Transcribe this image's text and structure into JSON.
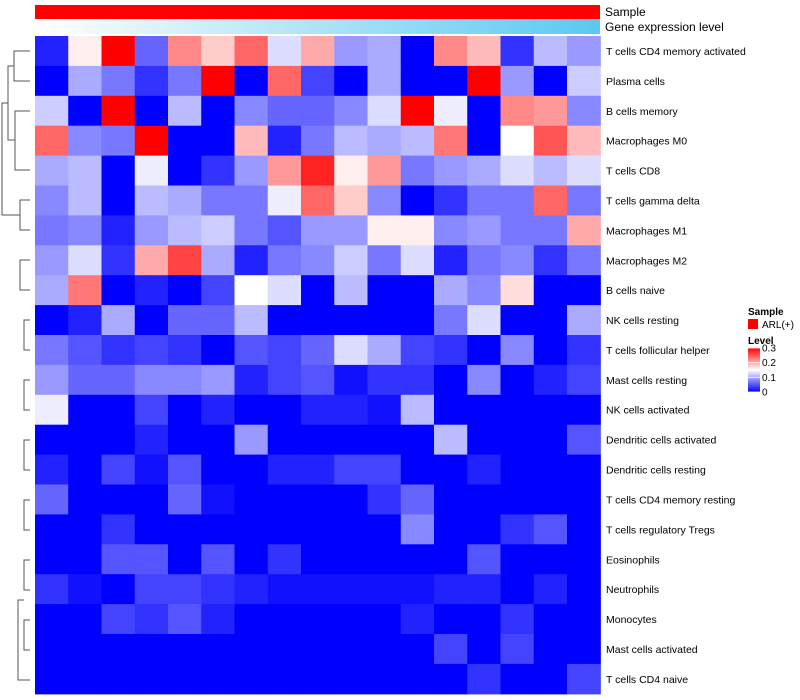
{
  "chart_data": {
    "type": "heatmap",
    "title": "",
    "annotation_tracks": [
      {
        "label": "Sample",
        "color": "#ff0000"
      },
      {
        "label": "Gene expression level",
        "gradient": [
          "#ffffff",
          "#5bc8f0"
        ]
      }
    ],
    "rows": [
      "T cells CD4 memory activated",
      "Plasma cells",
      "B cells memory",
      "Macrophages M0",
      "T cells CD8",
      "T cells gamma delta",
      "Macrophages M1",
      "Macrophages M2",
      "B cells naive",
      "NK cells resting",
      "T cells follicular helper",
      "Mast cells resting",
      "NK cells activated",
      "Dendritic cells activated",
      "Dendritic cells resting",
      "T cells CD4 memory resting",
      "T cells regulatory  Tregs",
      "Eosinophils",
      "Neutrophils",
      "Monocytes",
      "Mast cells activated",
      "T cells CD4 naive"
    ],
    "n_columns": 17,
    "values": [
      [
        0.02,
        0.16,
        0.3,
        0.06,
        0.22,
        0.18,
        0.24,
        0.13,
        0.2,
        0.09,
        0.1,
        0.0,
        0.22,
        0.19,
        0.03,
        0.11,
        0.09
      ],
      [
        0.0,
        0.1,
        0.07,
        0.03,
        0.07,
        0.3,
        0.0,
        0.24,
        0.04,
        0.0,
        0.1,
        0.0,
        0.0,
        0.3,
        0.09,
        0.0,
        0.12
      ],
      [
        0.12,
        0.0,
        0.3,
        0.0,
        0.11,
        0.0,
        0.08,
        0.06,
        0.06,
        0.08,
        0.13,
        0.3,
        0.14,
        0.0,
        0.22,
        0.21,
        0.08
      ],
      [
        0.24,
        0.08,
        0.07,
        0.3,
        0.0,
        0.0,
        0.19,
        0.02,
        0.07,
        0.11,
        0.1,
        0.11,
        0.23,
        0.0,
        0.15,
        0.25,
        0.19
      ],
      [
        0.1,
        0.11,
        0.0,
        0.14,
        0.0,
        0.03,
        0.09,
        0.21,
        0.28,
        0.16,
        0.21,
        0.07,
        0.09,
        0.1,
        0.13,
        0.11,
        0.13
      ],
      [
        0.08,
        0.11,
        0.0,
        0.11,
        0.1,
        0.07,
        0.07,
        0.14,
        0.24,
        0.18,
        0.08,
        0.0,
        0.03,
        0.07,
        0.07,
        0.24,
        0.07
      ],
      [
        0.07,
        0.08,
        0.02,
        0.09,
        0.11,
        0.12,
        0.07,
        0.05,
        0.09,
        0.09,
        0.16,
        0.16,
        0.08,
        0.09,
        0.07,
        0.07,
        0.2
      ],
      [
        0.09,
        0.13,
        0.03,
        0.2,
        0.26,
        0.1,
        0.02,
        0.07,
        0.08,
        0.12,
        0.07,
        0.13,
        0.02,
        0.07,
        0.08,
        0.03,
        0.07
      ],
      [
        0.1,
        0.23,
        0.0,
        0.02,
        0.0,
        0.04,
        0.15,
        0.13,
        0.0,
        0.11,
        0.0,
        0.0,
        0.1,
        0.08,
        0.17,
        0.0,
        0.0
      ],
      [
        0.0,
        0.02,
        0.1,
        0.0,
        0.06,
        0.06,
        0.11,
        0.0,
        0.0,
        0.0,
        0.0,
        0.0,
        0.07,
        0.13,
        0.0,
        0.0,
        0.1
      ],
      [
        0.07,
        0.05,
        0.03,
        0.04,
        0.03,
        0.0,
        0.05,
        0.04,
        0.06,
        0.13,
        0.1,
        0.04,
        0.03,
        0.0,
        0.08,
        0.0,
        0.03
      ],
      [
        0.09,
        0.06,
        0.06,
        0.08,
        0.08,
        0.09,
        0.02,
        0.04,
        0.05,
        0.01,
        0.03,
        0.03,
        0.0,
        0.08,
        0.0,
        0.02,
        0.04
      ],
      [
        0.14,
        0.0,
        0.0,
        0.04,
        0.0,
        0.02,
        0.0,
        0.0,
        0.02,
        0.02,
        0.01,
        0.11,
        0.0,
        0.0,
        0.0,
        0.0,
        0.0
      ],
      [
        0.0,
        0.0,
        0.0,
        0.02,
        0.0,
        0.0,
        0.09,
        0.0,
        0.0,
        0.0,
        0.0,
        0.0,
        0.11,
        0.0,
        0.0,
        0.0,
        0.05
      ],
      [
        0.02,
        0.0,
        0.04,
        0.01,
        0.05,
        0.0,
        0.0,
        0.02,
        0.02,
        0.04,
        0.04,
        0.0,
        0.0,
        0.02,
        0.0,
        0.0,
        0.0
      ],
      [
        0.06,
        0.0,
        0.0,
        0.0,
        0.06,
        0.01,
        0.0,
        0.0,
        0.0,
        0.0,
        0.03,
        0.06,
        0.0,
        0.0,
        0.0,
        0.0,
        0.0
      ],
      [
        0.0,
        0.0,
        0.03,
        0.0,
        0.0,
        0.0,
        0.0,
        0.0,
        0.0,
        0.0,
        0.0,
        0.08,
        0.0,
        0.0,
        0.03,
        0.05,
        0.0
      ],
      [
        0.0,
        0.0,
        0.05,
        0.05,
        0.0,
        0.05,
        0.0,
        0.03,
        0.0,
        0.0,
        0.0,
        0.0,
        0.0,
        0.05,
        0.0,
        0.0,
        0.0
      ],
      [
        0.03,
        0.01,
        0.0,
        0.04,
        0.04,
        0.03,
        0.02,
        0.01,
        0.01,
        0.01,
        0.01,
        0.01,
        0.02,
        0.02,
        0.0,
        0.02,
        0.0
      ],
      [
        0.0,
        0.0,
        0.04,
        0.03,
        0.05,
        0.02,
        0.0,
        0.0,
        0.0,
        0.0,
        0.0,
        0.02,
        0.0,
        0.0,
        0.03,
        0.0,
        0.0
      ],
      [
        0.0,
        0.0,
        0.0,
        0.0,
        0.0,
        0.0,
        0.0,
        0.0,
        0.0,
        0.0,
        0.0,
        0.0,
        0.04,
        0.0,
        0.04,
        0.0,
        0.0
      ],
      [
        0.0,
        0.0,
        0.0,
        0.0,
        0.0,
        0.0,
        0.0,
        0.0,
        0.0,
        0.0,
        0.0,
        0.0,
        0.0,
        0.03,
        0.0,
        0.0,
        0.04
      ]
    ],
    "color_scale": {
      "min": 0,
      "mid": 0.15,
      "max": 0.3,
      "low": "#0000ff",
      "midColor": "#ffffff",
      "high": "#ff0000"
    },
    "legend": {
      "sample_title": "Sample",
      "sample_entry": "ARL(+)",
      "level_title": "Level",
      "ticks": [
        {
          "value": 0.3,
          "label": "0.3"
        },
        {
          "value": 0.2,
          "label": "0.2"
        },
        {
          "value": 0.1,
          "label": "0.1"
        },
        {
          "value": 0,
          "label": "0"
        }
      ]
    }
  }
}
